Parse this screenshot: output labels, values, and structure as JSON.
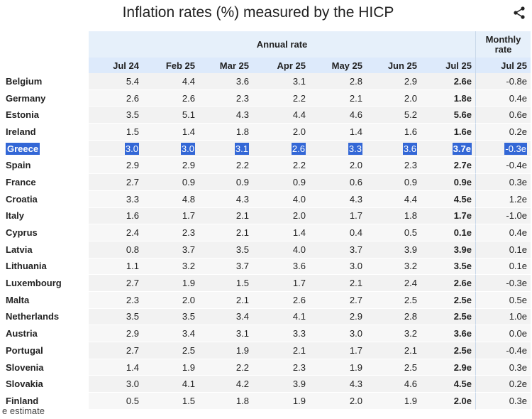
{
  "title": "Inflation rates (%) measured by the HICP",
  "header": {
    "annual_rate": "Annual rate",
    "monthly_rate": "Monthly rate",
    "columns": [
      "Jul 24",
      "Feb 25",
      "Mar 25",
      "Apr 25",
      "May 25",
      "Jun 25",
      "Jul 25",
      "Jul 25"
    ]
  },
  "rows": [
    {
      "country": "Belgium",
      "v": [
        "5.4",
        "4.4",
        "3.6",
        "3.1",
        "2.8",
        "2.9",
        "2.6e",
        "-0.8e"
      ]
    },
    {
      "country": "Germany",
      "v": [
        "2.6",
        "2.6",
        "2.3",
        "2.2",
        "2.1",
        "2.0",
        "1.8e",
        "0.4e"
      ]
    },
    {
      "country": "Estonia",
      "v": [
        "3.5",
        "5.1",
        "4.3",
        "4.4",
        "4.6",
        "5.2",
        "5.6e",
        "0.6e"
      ]
    },
    {
      "country": "Ireland",
      "v": [
        "1.5",
        "1.4",
        "1.8",
        "2.0",
        "1.4",
        "1.6",
        "1.6e",
        "0.2e"
      ]
    },
    {
      "country": "Greece",
      "v": [
        "3.0",
        "3.0",
        "3.1",
        "2.6",
        "3.3",
        "3.6",
        "3.7e",
        "-0.3e"
      ],
      "highlighted": true
    },
    {
      "country": "Spain",
      "v": [
        "2.9",
        "2.9",
        "2.2",
        "2.2",
        "2.0",
        "2.3",
        "2.7e",
        "-0.4e"
      ]
    },
    {
      "country": "France",
      "v": [
        "2.7",
        "0.9",
        "0.9",
        "0.9",
        "0.6",
        "0.9",
        "0.9e",
        "0.3e"
      ]
    },
    {
      "country": "Croatia",
      "v": [
        "3.3",
        "4.8",
        "4.3",
        "4.0",
        "4.3",
        "4.4",
        "4.5e",
        "1.2e"
      ]
    },
    {
      "country": "Italy",
      "v": [
        "1.6",
        "1.7",
        "2.1",
        "2.0",
        "1.7",
        "1.8",
        "1.7e",
        "-1.0e"
      ]
    },
    {
      "country": "Cyprus",
      "v": [
        "2.4",
        "2.3",
        "2.1",
        "1.4",
        "0.4",
        "0.5",
        "0.1e",
        "0.4e"
      ]
    },
    {
      "country": "Latvia",
      "v": [
        "0.8",
        "3.7",
        "3.5",
        "4.0",
        "3.7",
        "3.9",
        "3.9e",
        "0.1e"
      ]
    },
    {
      "country": "Lithuania",
      "v": [
        "1.1",
        "3.2",
        "3.7",
        "3.6",
        "3.0",
        "3.2",
        "3.5e",
        "0.1e"
      ]
    },
    {
      "country": "Luxembourg",
      "v": [
        "2.7",
        "1.9",
        "1.5",
        "1.7",
        "2.1",
        "2.4",
        "2.6e",
        "-0.3e"
      ]
    },
    {
      "country": "Malta",
      "v": [
        "2.3",
        "2.0",
        "2.1",
        "2.6",
        "2.7",
        "2.5",
        "2.5e",
        "0.5e"
      ]
    },
    {
      "country": "Netherlands",
      "v": [
        "3.5",
        "3.5",
        "3.4",
        "4.1",
        "2.9",
        "2.8",
        "2.5e",
        "1.0e"
      ]
    },
    {
      "country": "Austria",
      "v": [
        "2.9",
        "3.4",
        "3.1",
        "3.3",
        "3.0",
        "3.2",
        "3.6e",
        "0.0e"
      ]
    },
    {
      "country": "Portugal",
      "v": [
        "2.7",
        "2.5",
        "1.9",
        "2.1",
        "1.7",
        "2.1",
        "2.5e",
        "-0.4e"
      ]
    },
    {
      "country": "Slovenia",
      "v": [
        "1.4",
        "1.9",
        "2.2",
        "2.3",
        "1.9",
        "2.5",
        "2.9e",
        "0.3e"
      ]
    },
    {
      "country": "Slovakia",
      "v": [
        "3.0",
        "4.1",
        "4.2",
        "3.9",
        "4.3",
        "4.6",
        "4.5e",
        "0.2e"
      ]
    },
    {
      "country": "Finland",
      "v": [
        "0.5",
        "1.5",
        "1.8",
        "1.9",
        "2.0",
        "1.9",
        "2.0e",
        "0.3e"
      ]
    }
  ],
  "footnote": "e estimate",
  "colors": {
    "highlight": "#3367d6",
    "header": "#e6f0fa"
  },
  "icons": {
    "share": "share-icon"
  }
}
